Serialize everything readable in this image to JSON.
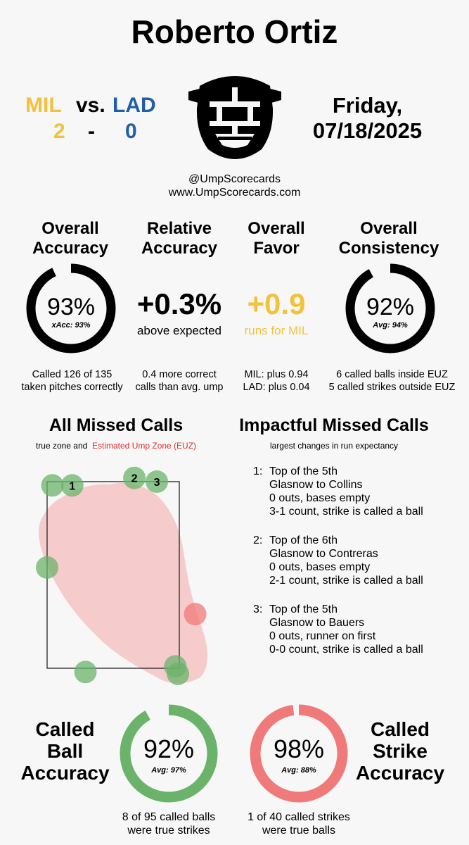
{
  "header": {
    "umpire": "Roberto Ortiz",
    "away_team": "MIL",
    "vs": "vs.",
    "home_team": "LAD",
    "away_score": "2",
    "dash": "-",
    "home_score": "0",
    "day": "Friday,",
    "date": "07/18/2025",
    "handle": "@UmpScorecards",
    "site": "www.UmpScorecards.com"
  },
  "colors": {
    "mil": "#f2c23b",
    "lad": "#1f5fa8",
    "ring": "#000000",
    "green": "#6bb36b",
    "red": "#f07a7a",
    "euz_red": "#e03030"
  },
  "stats": {
    "overall_accuracy": {
      "head1": "Overall",
      "head2": "Accuracy",
      "pct": "93%",
      "sub": "xAcc: 93%",
      "value": 0.93,
      "note1": "Called 126 of 135",
      "note2": "taken pitches correctly"
    },
    "relative_accuracy": {
      "head1": "Relative",
      "head2": "Accuracy",
      "value": "+0.3%",
      "sub": "above expected",
      "note1": "0.4 more correct",
      "note2": "calls than avg. ump"
    },
    "overall_favor": {
      "head1": "Overall",
      "head2": "Favor",
      "value": "+0.9",
      "sub": "runs for MIL",
      "note1": "MIL: plus 0.94",
      "note2": "LAD: plus 0.04"
    },
    "overall_consistency": {
      "head1": "Overall",
      "head2": "Consistency",
      "pct": "92%",
      "sub": "Avg: 94%",
      "value": 0.92,
      "note1": "6 called balls inside EUZ",
      "note2": "5 called strikes outside EUZ"
    }
  },
  "missed": {
    "title": "All Missed Calls",
    "legend_prefix": "true zone and",
    "legend_euz": "Estimated Ump Zone (EUZ)"
  },
  "chart_data": {
    "type": "scatter",
    "title": "All Missed Calls",
    "series": [
      {
        "name": "called balls (true strikes)",
        "color": "#6bb36b",
        "points": [
          {
            "x": 0.04,
            "y": 0.98,
            "label": ""
          },
          {
            "x": 0.19,
            "y": 0.98,
            "label": "1"
          },
          {
            "x": 0.66,
            "y": 1.02,
            "label": "2"
          },
          {
            "x": 0.83,
            "y": 1.0,
            "label": "3"
          },
          {
            "x": 0.0,
            "y": 0.54,
            "label": ""
          },
          {
            "x": 0.29,
            "y": -0.02,
            "label": ""
          },
          {
            "x": 0.97,
            "y": 0.01,
            "label": ""
          },
          {
            "x": 0.99,
            "y": -0.03,
            "label": ""
          }
        ]
      },
      {
        "name": "called strikes (true balls)",
        "color": "#f07a7a",
        "points": [
          {
            "x": 1.12,
            "y": 0.29,
            "label": ""
          }
        ]
      }
    ]
  },
  "impactful": {
    "title": "Impactful Missed Calls",
    "sub": "largest changes in run expectancy",
    "items": [
      {
        "num": "1:",
        "l1": "Top of the 5th",
        "l2": "Glasnow to Collins",
        "l3": "0 outs, bases empty",
        "l4": "3-1 count, strike is called a ball"
      },
      {
        "num": "2:",
        "l1": "Top of the 6th",
        "l2": "Glasnow to Contreras",
        "l3": "0 outs, bases empty",
        "l4": "2-1 count, strike is called a ball"
      },
      {
        "num": "3:",
        "l1": "Top of the 5th",
        "l2": "Glasnow to Bauers",
        "l3": "0 outs, runner on first",
        "l4": "0-0 count, strike is called a ball"
      }
    ]
  },
  "bottom": {
    "ball": {
      "h1": "Called",
      "h2": "Ball",
      "h3": "Accuracy",
      "pct": "92%",
      "sub": "Avg: 97%",
      "value": 0.92,
      "note1": "8 of 95 called balls",
      "note2": "were true strikes"
    },
    "strike": {
      "h1": "Called",
      "h2": "Strike",
      "h3": "Accuracy",
      "pct": "98%",
      "sub": "Avg: 88%",
      "value": 0.98,
      "note1": "1 of 40 called strikes",
      "note2": "were true balls"
    }
  }
}
